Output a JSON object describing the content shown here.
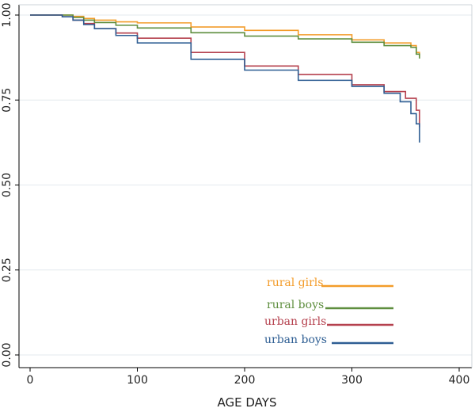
{
  "chart_data": {
    "type": "line",
    "title": "",
    "xlabel": "AGE DAYS",
    "ylabel": "",
    "xlim": [
      0,
      400
    ],
    "ylim": [
      0,
      1
    ],
    "x_ticks": [
      "0",
      "100",
      "200",
      "300",
      "400"
    ],
    "y_ticks": [
      "0.00",
      "0.25",
      "0.50",
      "0.75",
      "1.00"
    ],
    "grid": "horizontal",
    "legend": "inside-bottom-right",
    "series": [
      {
        "name": "rural girls",
        "color": "#F39C2A",
        "x": [
          0,
          20,
          40,
          50,
          60,
          80,
          100,
          150,
          200,
          250,
          300,
          330,
          355,
          360,
          363
        ],
        "y": [
          1.0,
          1.0,
          0.996,
          0.99,
          0.985,
          0.98,
          0.977,
          0.965,
          0.955,
          0.942,
          0.927,
          0.918,
          0.91,
          0.89,
          0.88
        ]
      },
      {
        "name": "rural boys",
        "color": "#5E8E3E",
        "x": [
          0,
          20,
          40,
          50,
          60,
          80,
          100,
          150,
          200,
          250,
          300,
          330,
          355,
          360,
          363
        ],
        "y": [
          1.0,
          1.0,
          0.993,
          0.985,
          0.978,
          0.97,
          0.962,
          0.948,
          0.938,
          0.93,
          0.92,
          0.91,
          0.905,
          0.885,
          0.872
        ]
      },
      {
        "name": "urban girls",
        "color": "#B5414E",
        "x": [
          0,
          20,
          30,
          40,
          50,
          60,
          80,
          100,
          150,
          200,
          250,
          300,
          330,
          350,
          360,
          363
        ],
        "y": [
          1.0,
          1.0,
          0.995,
          0.985,
          0.975,
          0.96,
          0.947,
          0.932,
          0.89,
          0.85,
          0.825,
          0.795,
          0.775,
          0.755,
          0.72,
          0.67
        ]
      },
      {
        "name": "urban boys",
        "color": "#2E5E93",
        "x": [
          0,
          20,
          30,
          40,
          50,
          60,
          80,
          100,
          150,
          200,
          250,
          300,
          330,
          345,
          355,
          360,
          363
        ],
        "y": [
          1.0,
          1.0,
          0.995,
          0.985,
          0.972,
          0.96,
          0.94,
          0.918,
          0.87,
          0.838,
          0.808,
          0.79,
          0.77,
          0.745,
          0.71,
          0.68,
          0.625
        ]
      }
    ]
  }
}
